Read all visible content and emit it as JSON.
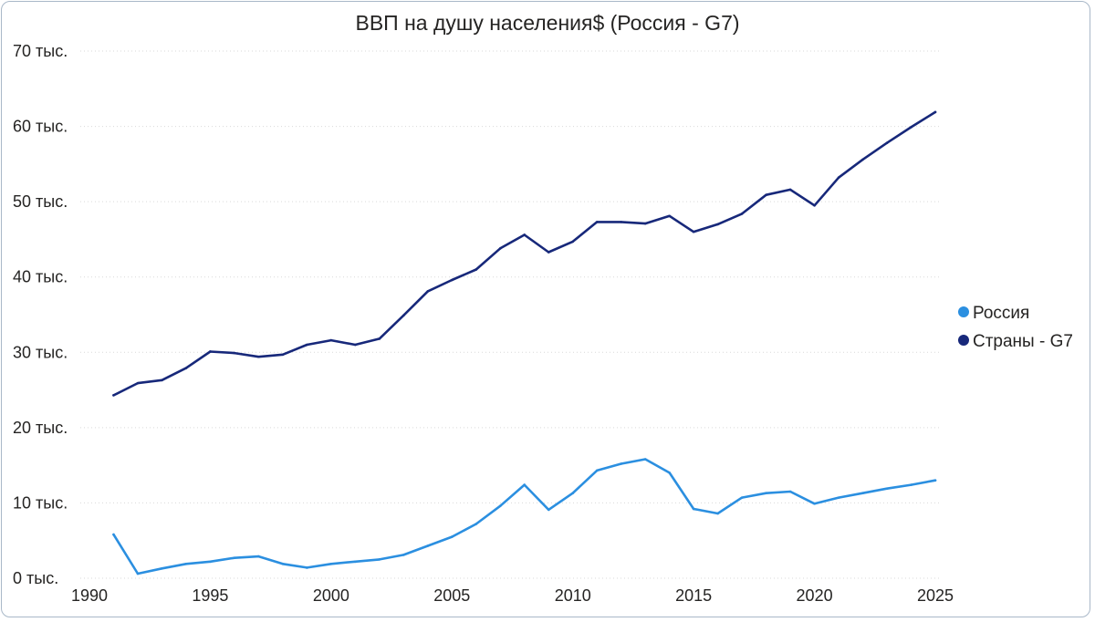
{
  "chart_data": {
    "type": "line",
    "title": "ВВП на душу населения$ (Россия - G7)",
    "xlabel": "",
    "ylabel": "",
    "xlim": [
      1990,
      2025
    ],
    "ylim": [
      0,
      70000
    ],
    "x_ticks": [
      "1990",
      "1995",
      "2000",
      "2005",
      "2010",
      "2015",
      "2020",
      "2025"
    ],
    "y_ticks": [
      "0 тыс.",
      "10 тыс.",
      "20 тыс.",
      "30 тыс.",
      "40 тыс.",
      "50 тыс.",
      "60 тыс.",
      "70 тыс."
    ],
    "grid": "horizontal dotted",
    "legend_position": "right",
    "x": [
      1991,
      1992,
      1993,
      1994,
      1995,
      1996,
      1997,
      1998,
      1999,
      2000,
      2001,
      2002,
      2003,
      2004,
      2005,
      2006,
      2007,
      2008,
      2009,
      2010,
      2011,
      2012,
      2013,
      2014,
      2015,
      2016,
      2017,
      2018,
      2019,
      2020,
      2021,
      2022,
      2023,
      2024,
      2025
    ],
    "series": [
      {
        "name": "Россия",
        "color": "#2b8fe0",
        "values": [
          5800,
          600,
          1300,
          1900,
          2200,
          2700,
          2900,
          1900,
          1400,
          1900,
          2200,
          2500,
          3100,
          4300,
          5500,
          7200,
          9600,
          12400,
          9100,
          11300,
          14300,
          15200,
          15800,
          14000,
          9200,
          8600,
          10700,
          11300,
          11500,
          9900,
          10700,
          11300,
          11900,
          12400,
          13000
        ]
      },
      {
        "name": "Страны - G7",
        "color": "#17287a",
        "values": [
          24300,
          25900,
          26300,
          27900,
          30100,
          29900,
          29400,
          29700,
          31000,
          31600,
          31000,
          31800,
          34900,
          38100,
          39600,
          41000,
          43800,
          45600,
          43300,
          44700,
          47300,
          47300,
          47100,
          48100,
          46000,
          47000,
          48400,
          50900,
          51600,
          49500,
          53200,
          55600,
          57800,
          59900,
          61900
        ]
      }
    ]
  }
}
